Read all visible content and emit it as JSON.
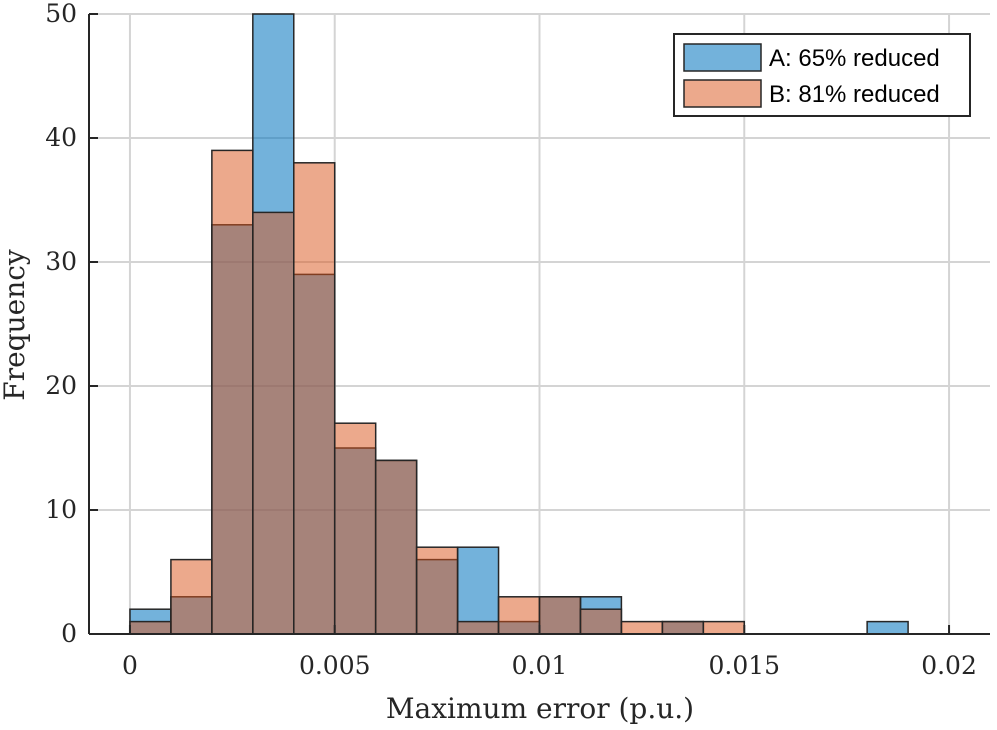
{
  "chart_data": {
    "type": "bar",
    "subtype": "overlaid-histogram",
    "xlabel": "Maximum error (p.u.)",
    "ylabel": "Frequency",
    "xlim": [
      -0.001,
      0.021
    ],
    "ylim": [
      0,
      50
    ],
    "xticks": [
      0,
      0.005,
      0.01,
      0.015,
      0.02
    ],
    "xtick_labels": [
      "0",
      "0.005",
      "0.01",
      "0.015",
      "0.02"
    ],
    "yticks": [
      0,
      10,
      20,
      30,
      40,
      50
    ],
    "ytick_labels": [
      "0",
      "10",
      "20",
      "30",
      "40",
      "50"
    ],
    "grid": true,
    "legend_position": "top-right",
    "bin_width": 0.001,
    "bin_edges": [
      0,
      0.001,
      0.002,
      0.003,
      0.004,
      0.005,
      0.006,
      0.007,
      0.008,
      0.009,
      0.01,
      0.011,
      0.012,
      0.013,
      0.014,
      0.015,
      0.016,
      0.017,
      0.018,
      0.019,
      0.02
    ],
    "series": [
      {
        "name": "A: 65% reduced",
        "color": "#0072BD",
        "values": [
          2,
          3,
          33,
          50,
          29,
          15,
          14,
          6,
          7,
          1,
          3,
          3,
          0,
          1,
          0,
          0,
          0,
          0,
          1,
          0
        ]
      },
      {
        "name": "B: 81% reduced",
        "color": "#D95319",
        "values": [
          1,
          6,
          39,
          34,
          38,
          17,
          14,
          7,
          1,
          3,
          3,
          2,
          1,
          1,
          1,
          0,
          0,
          0,
          0,
          0
        ]
      }
    ]
  }
}
